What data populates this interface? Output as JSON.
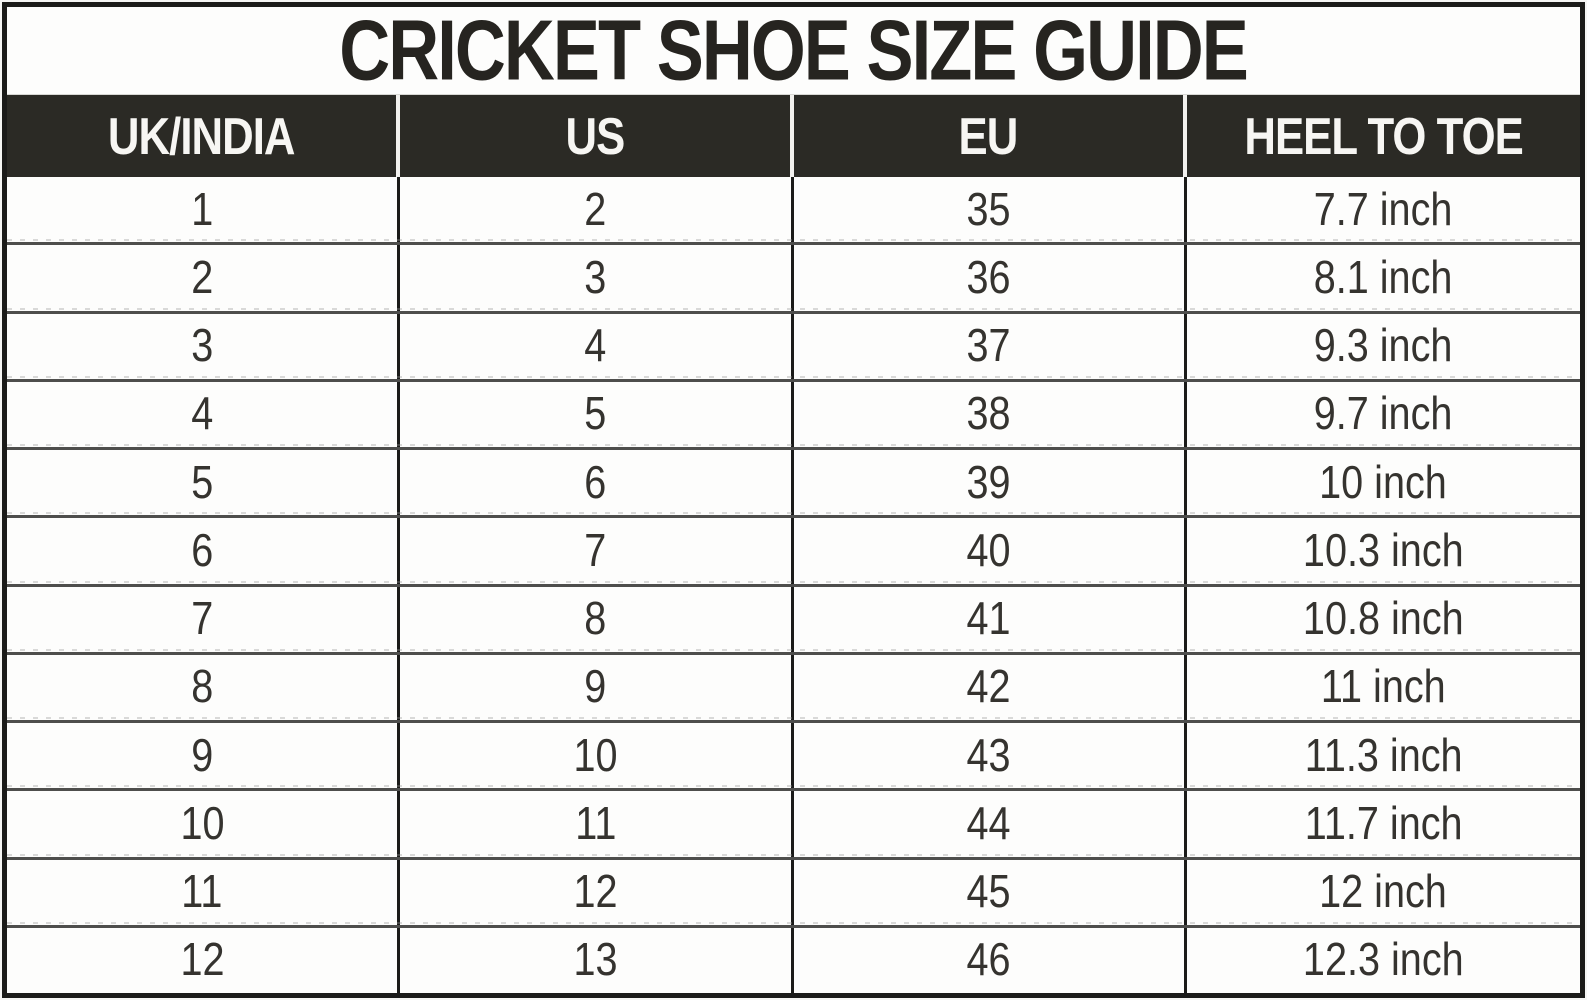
{
  "title": "CRICKET SHOE SIZE GUIDE",
  "colors": {
    "title_text": "#262420",
    "header_bg": "#2b2a25",
    "header_text": "#f7f6f3",
    "header_divider": "#f2f1ee",
    "row_bg": "#fdfdfc",
    "data_text": "#35332f",
    "column_divider": "#1b1b19",
    "row_separator": "#4e4e4c",
    "outer_border": "#1b1b19"
  },
  "chart_data": {
    "type": "table",
    "title": "CRICKET SHOE SIZE GUIDE",
    "columns": [
      "UK/INDIA",
      "US",
      "EU",
      "HEEL TO TOE"
    ],
    "rows": [
      [
        "1",
        "2",
        "35",
        "7.7 inch"
      ],
      [
        "2",
        "3",
        "36",
        "8.1 inch"
      ],
      [
        "3",
        "4",
        "37",
        "9.3 inch"
      ],
      [
        "4",
        "5",
        "38",
        "9.7 inch"
      ],
      [
        "5",
        "6",
        "39",
        "10 inch"
      ],
      [
        "6",
        "7",
        "40",
        "10.3 inch"
      ],
      [
        "7",
        "8",
        "41",
        "10.8 inch"
      ],
      [
        "8",
        "9",
        "42",
        "11 inch"
      ],
      [
        "9",
        "10",
        "43",
        "11.3 inch"
      ],
      [
        "10",
        "11",
        "44",
        "11.7 inch"
      ],
      [
        "11",
        "12",
        "45",
        "12 inch"
      ],
      [
        "12",
        "13",
        "46",
        "12.3 inch"
      ]
    ],
    "layout": {
      "legend": false,
      "grid": true,
      "column_count": 4,
      "row_count": 12
    }
  }
}
